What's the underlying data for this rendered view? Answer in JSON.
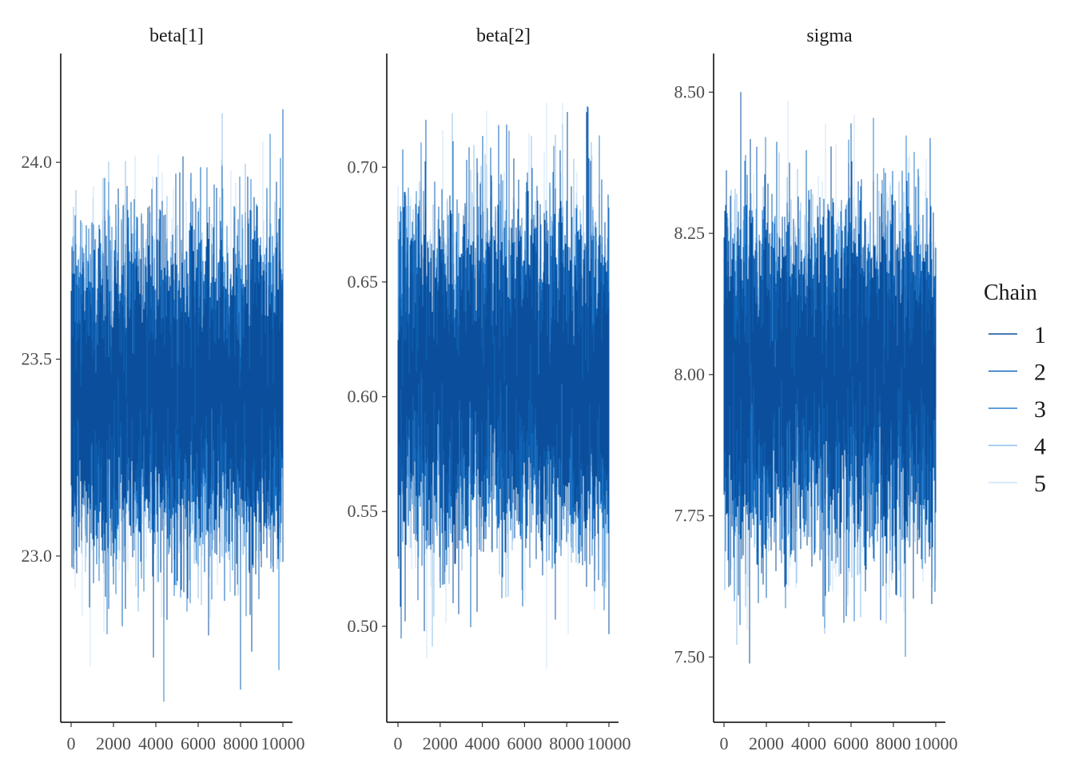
{
  "chart_data": {
    "type": "line",
    "legend": {
      "title": "Chain",
      "placement": "right",
      "entries": [
        {
          "label": "1",
          "color": "#0b4f9c"
        },
        {
          "label": "2",
          "color": "#0f64b8"
        },
        {
          "label": "3",
          "color": "#2a7fcf"
        },
        {
          "label": "4",
          "color": "#8fbfea"
        },
        {
          "label": "5",
          "color": "#cce3f8"
        }
      ]
    },
    "grid": false,
    "panels": [
      {
        "title": "beta[1]",
        "xlim": [
          0,
          10000
        ],
        "xticks": [
          0,
          2000,
          4000,
          6000,
          8000,
          10000
        ],
        "xtick_labels": [
          "0",
          "2000",
          "4000",
          "6000",
          "8000",
          "10000"
        ],
        "ylim": [
          22.6,
          24.25
        ],
        "yticks": [
          23.0,
          23.5,
          24.0
        ],
        "ytick_labels": [
          "23.0",
          "23.5",
          "24.0"
        ],
        "trace": {
          "iterations": 10000,
          "center": 23.42,
          "sd": 0.2,
          "min": 22.63,
          "max": 24.18
        }
      },
      {
        "title": "beta[2]",
        "xlim": [
          0,
          10000
        ],
        "xticks": [
          0,
          2000,
          4000,
          6000,
          8000,
          10000
        ],
        "xtick_labels": [
          "0",
          "2000",
          "4000",
          "6000",
          "8000",
          "10000"
        ],
        "ylim": [
          0.462,
          0.745
        ],
        "yticks": [
          0.5,
          0.55,
          0.6,
          0.65,
          0.7
        ],
        "ytick_labels": [
          "0.50",
          "0.55",
          "0.60",
          "0.65",
          "0.70"
        ],
        "trace": {
          "iterations": 10000,
          "center": 0.61,
          "sd": 0.035,
          "min": 0.468,
          "max": 0.728
        }
      },
      {
        "title": "sigma",
        "xlim": [
          0,
          10000
        ],
        "xticks": [
          0,
          2000,
          4000,
          6000,
          8000,
          10000
        ],
        "xtick_labels": [
          "0",
          "2000",
          "4000",
          "6000",
          "8000",
          "10000"
        ],
        "ylim": [
          7.4,
          8.55
        ],
        "yticks": [
          7.5,
          7.75,
          8.0,
          8.25,
          8.5
        ],
        "ytick_labels": [
          "7.50",
          "7.75",
          "8.00",
          "8.25",
          "8.50"
        ],
        "trace": {
          "iterations": 10000,
          "center": 8.0,
          "sd": 0.14,
          "min": 7.45,
          "max": 8.5
        }
      }
    ]
  }
}
